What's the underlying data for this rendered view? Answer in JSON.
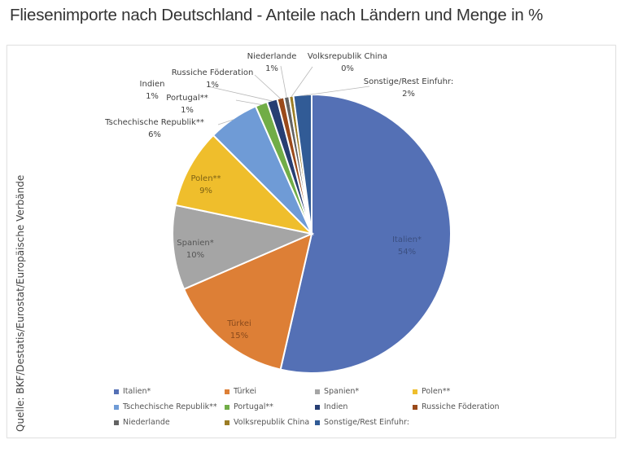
{
  "page": {
    "title": "Fliesenimporte nach Deutschland - Anteile nach Ländern und Menge in %",
    "source": "Quelle: BKF/Destatis/Eurostat/Europäische Verbände"
  },
  "chart_data": {
    "type": "pie",
    "title": "Fliesenimporte nach Deutschland - Anteile nach Ländern und Menge in %",
    "start_angle": "12 o'clock",
    "direction": "clockwise",
    "legend_position": "bottom",
    "slices": [
      {
        "label": "Italien*",
        "value": 53.6,
        "display": "54%",
        "color": "#5470b5",
        "label_color": "#3b4f80",
        "label_pos": "inside"
      },
      {
        "label": "Türkei",
        "value": 14.9,
        "display": "15%",
        "color": "#dd7f36",
        "label_color": "#8a4a1c",
        "label_pos": "inside"
      },
      {
        "label": "Spanien*",
        "value": 9.8,
        "display": "10%",
        "color": "#a5a5a5",
        "label_color": "#555555",
        "label_pos": "inside"
      },
      {
        "label": "Polen**",
        "value": 9.2,
        "display": "9%",
        "color": "#efbe2c",
        "label_color": "#7d6215",
        "label_pos": "inside"
      },
      {
        "label": "Tschechische Republik**",
        "value": 5.9,
        "display": "6%",
        "color": "#6f9bd6",
        "label_color": "#404040",
        "label_pos": "outside"
      },
      {
        "label": "Portugal**",
        "value": 1.4,
        "display": "1%",
        "color": "#71ad47",
        "label_color": "#404040",
        "label_pos": "outside"
      },
      {
        "label": "Indien",
        "value": 1.2,
        "display": "1%",
        "color": "#273e73",
        "label_color": "#404040",
        "label_pos": "outside"
      },
      {
        "label": "Russiche Föderation",
        "value": 0.8,
        "display": "1%",
        "color": "#9a4a1a",
        "label_color": "#404040",
        "label_pos": "outside"
      },
      {
        "label": "Niederlande",
        "value": 0.6,
        "display": "1%",
        "color": "#636363",
        "label_color": "#404040",
        "label_pos": "outside"
      },
      {
        "label": "Volksrepublik China",
        "value": 0.5,
        "display": "0%",
        "color": "#9b7d25",
        "label_color": "#404040",
        "label_pos": "outside"
      },
      {
        "label": "Sonstige/Rest Einfuhr:",
        "value": 2.1,
        "display": "2%",
        "color": "#315b96",
        "label_color": "#404040",
        "label_pos": "outside"
      }
    ]
  }
}
